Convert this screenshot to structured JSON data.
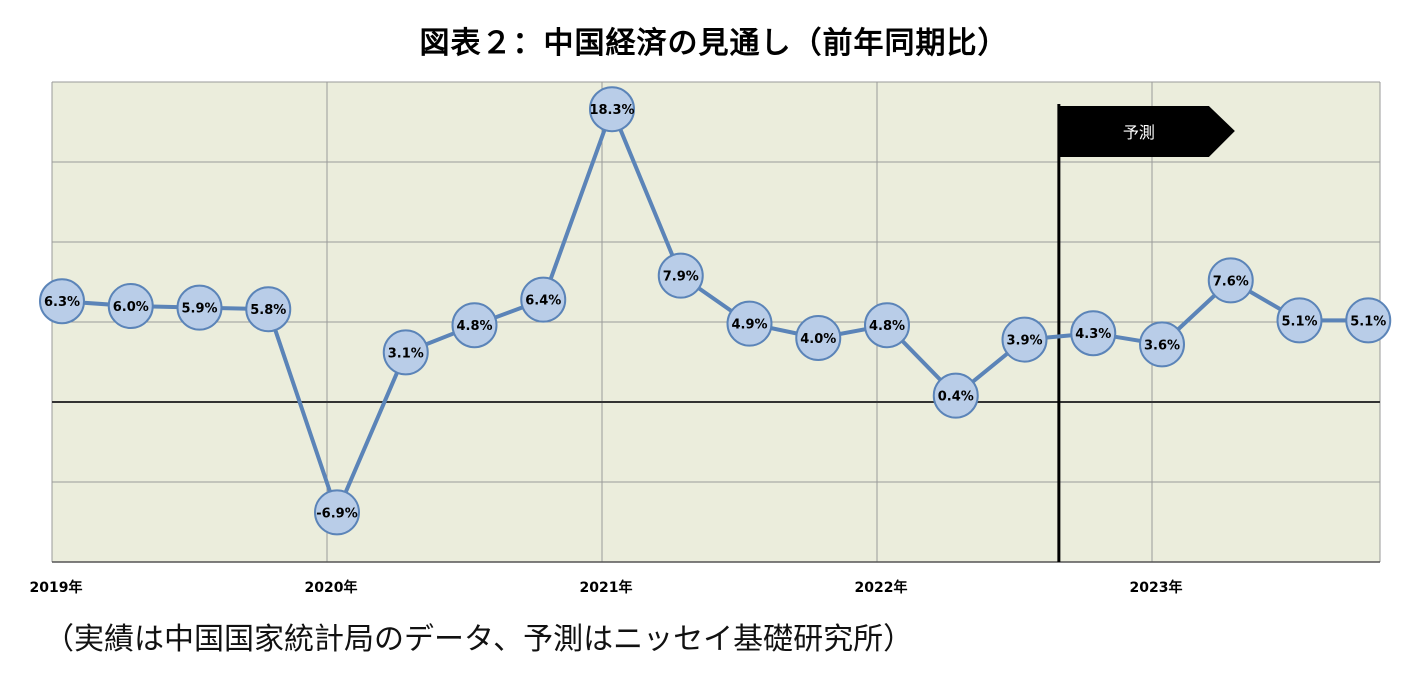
{
  "chart_data": {
    "type": "line",
    "title": "図表２：中国経済の見通し（前年同期比）",
    "note": "（実績は中国国家統計局のデータ、予測はニッセイ基礎研究所）",
    "forecast_label": "予測",
    "unit": "%",
    "year_labels": [
      "2019年",
      "2020年",
      "2021年",
      "2022年",
      "2023年"
    ],
    "ylim": [
      -10,
      20
    ],
    "grid": true,
    "series": [
      {
        "values": [
          6.3,
          6.0,
          5.9,
          5.8,
          -6.9,
          3.1,
          4.8,
          6.4,
          18.3,
          7.9,
          4.9,
          4.0,
          4.8,
          0.4,
          3.9,
          4.3,
          3.6,
          7.6,
          5.1,
          5.1
        ],
        "labels": [
          "6.3%",
          "6.0%",
          "5.9%",
          "5.8%",
          "-6.9%",
          "3.1%",
          "4.8%",
          "6.4%",
          "18.3%",
          "7.9%",
          "4.9%",
          "4.0%",
          "4.8%",
          "0.4%",
          "3.9%",
          "4.3%",
          "3.6%",
          "7.6%",
          "5.1%",
          "5.1%"
        ]
      }
    ],
    "forecast_start_index": 15,
    "colors": {
      "plot_background": "#ebeddc",
      "grid": "#9a9a9a",
      "line": "#5b84b8",
      "marker_fill": "#b9cde8",
      "marker_stroke": "#5b84b8",
      "zero_line": "#333333",
      "flag": "#000000"
    }
  }
}
